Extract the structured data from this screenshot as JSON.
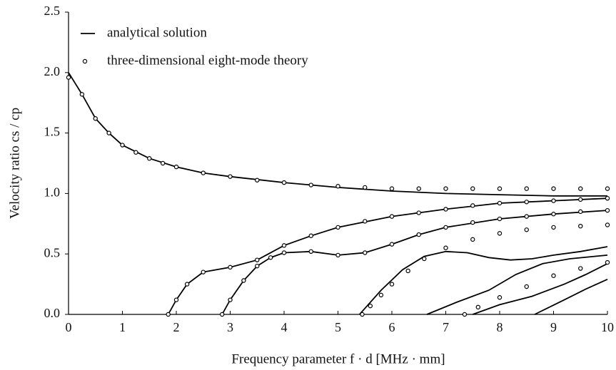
{
  "chart_data": {
    "type": "line",
    "xlabel": "Frequency parameter f · d  [MHz · mm]",
    "ylabel": "Velocity ratio cs / cp",
    "xlim": [
      0,
      10
    ],
    "ylim": [
      0,
      2.5
    ],
    "xticks": [
      0,
      1,
      2,
      3,
      4,
      5,
      6,
      7,
      8,
      9,
      10
    ],
    "yticks": [
      {
        "value": 0,
        "label": "0.0"
      },
      {
        "value": 0.5,
        "label": "0.5"
      },
      {
        "value": 1,
        "label": "1.0"
      },
      {
        "value": 1.5,
        "label": "1.5"
      },
      {
        "value": 2,
        "label": "2.0"
      },
      {
        "value": 2.5,
        "label": "2.5"
      }
    ],
    "legend": "upper left",
    "series": [
      {
        "name": "analytical solution",
        "type": "line",
        "color": "#000000",
        "x": [
          0,
          0.25,
          0.5,
          0.75,
          1,
          1.5,
          2,
          2.5,
          3,
          4,
          5,
          6,
          7,
          8,
          9,
          10,
          null,
          1.85,
          2,
          2.2,
          2.5,
          3,
          3.5,
          4,
          4.5,
          5,
          6,
          7,
          8,
          9,
          10,
          null,
          2.85,
          3,
          3.25,
          3.5,
          3.75,
          4,
          4.5,
          5,
          5.5,
          6,
          6.5,
          7,
          8,
          9,
          10,
          null,
          5.4,
          5.8,
          6.2,
          6.6,
          7,
          7.4,
          7.8,
          8.2,
          8.6,
          9,
          9.5,
          10,
          null,
          6.65,
          7.2,
          7.8,
          8.3,
          8.8,
          9.3,
          10,
          null,
          7.5,
          8,
          8.6,
          9.2,
          9.6,
          10,
          null,
          8.65,
          9.2,
          9.6,
          10
        ],
        "values": [
          2.0,
          1.82,
          1.62,
          1.5,
          1.4,
          1.29,
          1.22,
          1.17,
          1.14,
          1.09,
          1.05,
          1.02,
          1.0,
          0.99,
          0.98,
          0.98,
          null,
          0,
          0.12,
          0.25,
          0.35,
          0.39,
          0.45,
          0.57,
          0.65,
          0.72,
          0.81,
          0.87,
          0.92,
          0.94,
          0.96,
          null,
          0,
          0.12,
          0.28,
          0.4,
          0.47,
          0.51,
          0.52,
          0.49,
          0.51,
          0.58,
          0.66,
          0.72,
          0.79,
          0.83,
          0.86,
          null,
          0,
          0.2,
          0.37,
          0.48,
          0.52,
          0.51,
          0.47,
          0.45,
          0.46,
          0.49,
          0.52,
          0.56,
          null,
          0,
          0.1,
          0.2,
          0.33,
          0.42,
          0.46,
          0.49,
          null,
          0,
          0.08,
          0.15,
          0.25,
          0.33,
          0.42,
          null,
          0,
          0.12,
          0.21,
          0.29
        ]
      },
      {
        "name": "three-dimensional eight-mode theory",
        "type": "scatter",
        "color": "#000000",
        "x": [
          0,
          0.25,
          0.5,
          0.75,
          1,
          1.25,
          1.5,
          1.75,
          2,
          2.5,
          3,
          3.5,
          4,
          4.5,
          5,
          5.5,
          6,
          6.5,
          7,
          7.5,
          8,
          8.5,
          9,
          9.5,
          10,
          1.85,
          2,
          2.2,
          2.5,
          3,
          3.5,
          4,
          4.5,
          5,
          5.5,
          6,
          6.5,
          7,
          7.5,
          8,
          8.5,
          9,
          9.5,
          10,
          2.85,
          3,
          3.25,
          3.5,
          3.75,
          4,
          4.5,
          5,
          5.5,
          6,
          6.5,
          7,
          7.5,
          8,
          8.5,
          9,
          9.5,
          10,
          5.45,
          5.6,
          5.8,
          6,
          6.3,
          6.6,
          7,
          7.5,
          8,
          8.5,
          9,
          9.5,
          10,
          7.35,
          7.6,
          8,
          8.5,
          9,
          9.5,
          10
        ],
        "values": [
          1.96,
          1.82,
          1.62,
          1.5,
          1.4,
          1.34,
          1.29,
          1.25,
          1.22,
          1.17,
          1.14,
          1.11,
          1.09,
          1.07,
          1.06,
          1.05,
          1.04,
          1.04,
          1.04,
          1.04,
          1.04,
          1.04,
          1.04,
          1.04,
          1.04,
          0,
          0.12,
          0.25,
          0.35,
          0.39,
          0.45,
          0.57,
          0.65,
          0.72,
          0.77,
          0.81,
          0.84,
          0.87,
          0.9,
          0.92,
          0.93,
          0.94,
          0.95,
          0.96,
          0,
          0.12,
          0.28,
          0.4,
          0.47,
          0.51,
          0.52,
          0.49,
          0.51,
          0.58,
          0.66,
          0.72,
          0.76,
          0.79,
          0.81,
          0.83,
          0.85,
          0.86,
          0,
          0.07,
          0.16,
          0.25,
          0.36,
          0.46,
          0.55,
          0.62,
          0.67,
          0.7,
          0.72,
          0.73,
          0.74,
          0,
          0.06,
          0.14,
          0.23,
          0.32,
          0.38,
          0.43
        ]
      }
    ]
  }
}
